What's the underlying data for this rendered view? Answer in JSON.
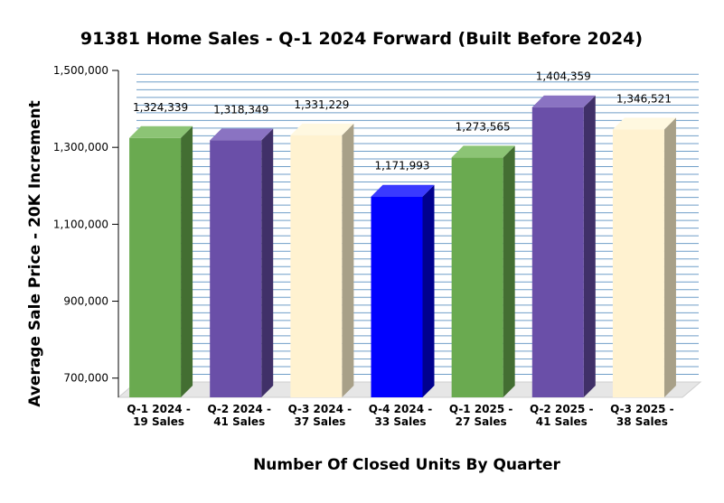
{
  "chart_data": {
    "type": "bar",
    "title": "91381 Home Sales - Q-1 2024 Forward (Built Before 2024)",
    "xlabel": "Number Of Closed Units By Quarter",
    "ylabel": "Average Sale Price - 20K Increment",
    "categories": [
      [
        "Q-1 2024 -",
        "19 Sales"
      ],
      [
        "Q-2 2024 -",
        "41 Sales"
      ],
      [
        "Q-3 2024 -",
        "37 Sales"
      ],
      [
        "Q-4 2024 -",
        "33 Sales"
      ],
      [
        "Q-1 2025 -",
        "27 Sales"
      ],
      [
        "Q-2 2025 -",
        "41 Sales"
      ],
      [
        "Q-3 2025 -",
        "38 Sales"
      ]
    ],
    "values": [
      1324339,
      1318349,
      1331229,
      1171993,
      1273565,
      1404359,
      1346521
    ],
    "data_labels": [
      "1,324,339",
      "1,318,349",
      "1,331,229",
      "1,171,993",
      "1,273,565",
      "1,404,359",
      "1,346,521"
    ],
    "bar_colors": [
      {
        "front": "#6aaa50",
        "top": "#8cc475",
        "side": "#436e32"
      },
      {
        "front": "#6a4fa8",
        "top": "#8a73c2",
        "side": "#403068"
      },
      {
        "front": "#fff2d0",
        "top": "#fff8e0",
        "side": "#a8a088"
      },
      {
        "front": "#0000ff",
        "top": "#3a3aff",
        "side": "#00008e"
      },
      {
        "front": "#6aaa50",
        "top": "#8cc475",
        "side": "#436e32"
      },
      {
        "front": "#6a4fa8",
        "top": "#8a73c2",
        "side": "#403068"
      },
      {
        "front": "#fff2d0",
        "top": "#fff8e0",
        "side": "#a8a088"
      }
    ],
    "ylim": [
      650000,
      1500000
    ],
    "yticks": [
      700000,
      900000,
      1100000,
      1300000,
      1500000
    ],
    "ytick_labels": [
      "700,000",
      "900,000",
      "1,100,000",
      "1,300,000",
      "1,500,000"
    ],
    "minor_grid_step": 20000,
    "grid": true,
    "gridline_color": "#6f9ec8",
    "floor_color": "#e6e6e6"
  }
}
